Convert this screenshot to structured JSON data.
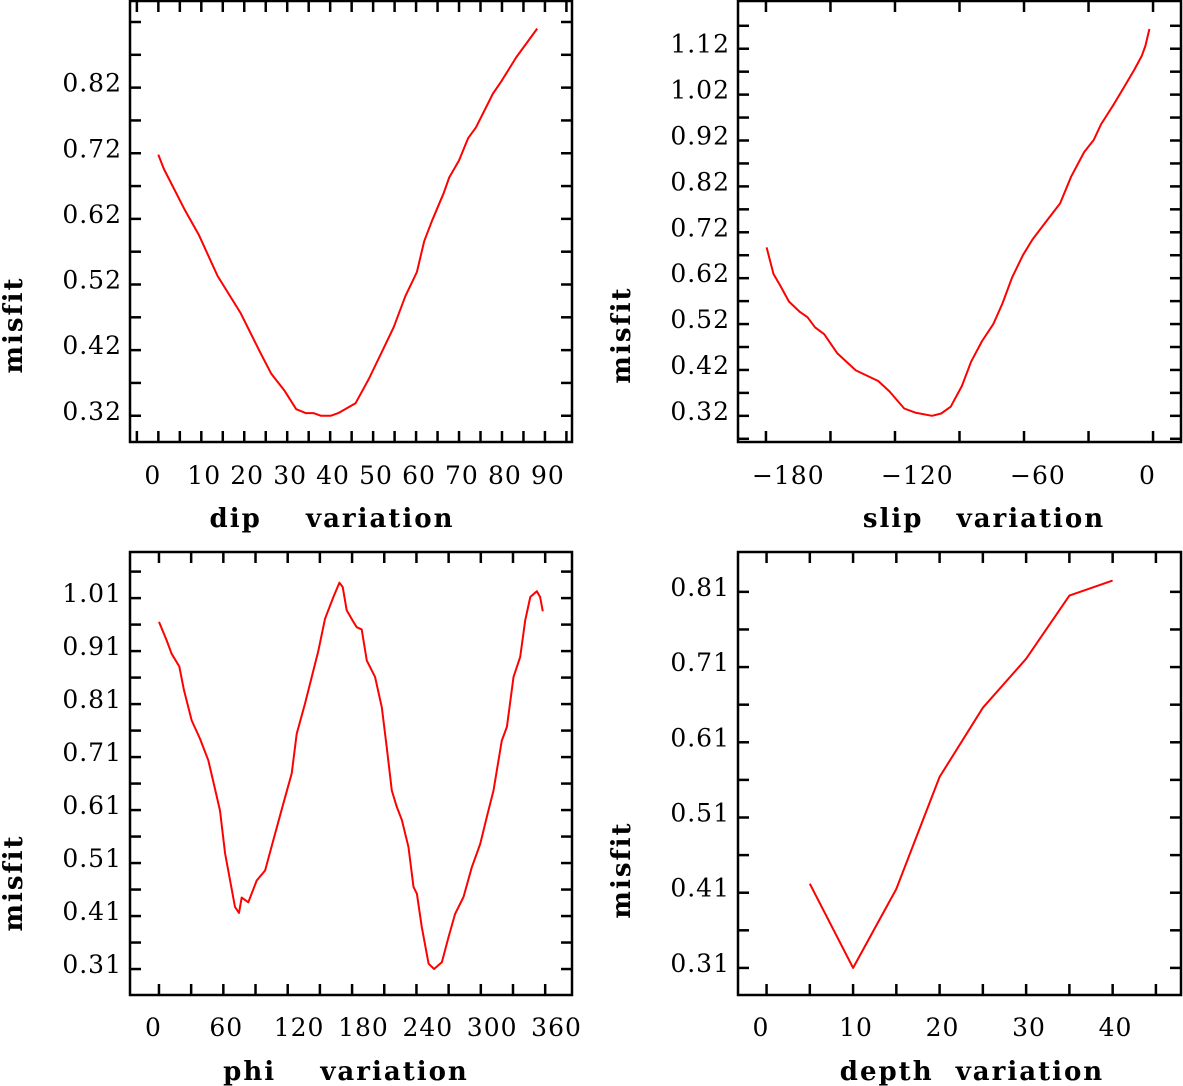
{
  "chart_data": [
    {
      "type": "line",
      "title": "",
      "xlabel": "dip    variation",
      "ylabel": "misfit",
      "xlim": [
        -6.6,
        96.3
      ],
      "ylim": [
        0.28,
        0.952
      ],
      "xticks": [
        0,
        10,
        20,
        30,
        40,
        50,
        60,
        70,
        80,
        90
      ],
      "xtick_labels": [
        "0",
        "10",
        "20",
        "30",
        "40",
        "50",
        "60",
        "70",
        "80",
        "90"
      ],
      "xminor_step": 5,
      "yticks": [
        0.32,
        0.42,
        0.52,
        0.62,
        0.72,
        0.82
      ],
      "ytick_labels": [
        "0.32",
        "0.42",
        "0.52",
        "0.62",
        "0.72",
        "0.82"
      ],
      "yminor_step": 0.05,
      "color": "#ff0000",
      "x": [
        0,
        1.3,
        6.2,
        9.4,
        13.8,
        19.2,
        23.6,
        26.3,
        29.4,
        32.1,
        34.3,
        36.1,
        37.9,
        40.1,
        41.9,
        45.9,
        49,
        52.1,
        54.8,
        57.5,
        60.2,
        61.9,
        63.7,
        66.4,
        67.7,
        70,
        72.1,
        73.9,
        77.9,
        79.8,
        83.3,
        88.2
      ],
      "y": [
        0.718,
        0.696,
        0.633,
        0.596,
        0.533,
        0.476,
        0.418,
        0.384,
        0.358,
        0.33,
        0.324,
        0.324,
        0.32,
        0.32,
        0.324,
        0.339,
        0.376,
        0.418,
        0.455,
        0.502,
        0.539,
        0.586,
        0.617,
        0.659,
        0.683,
        0.709,
        0.743,
        0.759,
        0.811,
        0.829,
        0.866,
        0.91
      ]
    },
    {
      "type": "line",
      "title": "",
      "xlabel": "slip   variation",
      "ylabel": "misfit",
      "xlim": [
        -193,
        13
      ],
      "ylim": [
        0.263,
        1.224
      ],
      "xticks": [
        -180,
        -120,
        -60,
        0
      ],
      "xtick_labels": [
        "−180",
        "−120",
        "−60",
        "0"
      ],
      "xminor_step": 30,
      "yticks": [
        0.32,
        0.42,
        0.52,
        0.62,
        0.72,
        0.82,
        0.92,
        1.02,
        1.12
      ],
      "ytick_labels": [
        "0.32",
        "0.42",
        "0.52",
        "0.62",
        "0.72",
        "0.82",
        "0.92",
        "1.02",
        "1.12"
      ],
      "yminor_step": 0.05,
      "color": "#ff0000",
      "x": [
        -179.7,
        -176.5,
        -173.6,
        -169.3,
        -164.1,
        -160.7,
        -157.2,
        -152.9,
        -146.8,
        -138.2,
        -127.8,
        -122.7,
        -115.7,
        -110.6,
        -102.8,
        -98.5,
        -94.1,
        -88.9,
        -84.6,
        -79.5,
        -74.3,
        -70,
        -65.6,
        -60.5,
        -56.1,
        -50.1,
        -43.2,
        -38,
        -32,
        -27.6,
        -24.2,
        -18.1,
        -13.8,
        -8.6,
        -5.2,
        -3.5,
        -1.7
      ],
      "y": [
        0.687,
        0.629,
        0.606,
        0.569,
        0.546,
        0.535,
        0.513,
        0.498,
        0.456,
        0.419,
        0.396,
        0.374,
        0.336,
        0.327,
        0.32,
        0.325,
        0.34,
        0.385,
        0.438,
        0.483,
        0.52,
        0.565,
        0.621,
        0.67,
        0.704,
        0.741,
        0.783,
        0.842,
        0.895,
        0.921,
        0.955,
        1.0,
        1.034,
        1.075,
        1.105,
        1.127,
        1.163
      ]
    },
    {
      "type": "line",
      "title": "",
      "xlabel": "phi    variation",
      "ylabel": "misfit",
      "xlim": [
        -27,
        385
      ],
      "ylim": [
        0.261,
        1.097
      ],
      "xticks": [
        0,
        60,
        120,
        180,
        240,
        300,
        360
      ],
      "xtick_labels": [
        "0",
        "60",
        "120",
        "180",
        "240",
        "300",
        "360"
      ],
      "xminor_step": 30,
      "yticks": [
        0.31,
        0.41,
        0.51,
        0.61,
        0.71,
        0.81,
        0.91,
        1.01
      ],
      "ytick_labels": [
        "0.31",
        "0.41",
        "0.51",
        "0.61",
        "0.71",
        "0.81",
        "0.91",
        "1.01"
      ],
      "yminor_step": 0.05,
      "color": "#ff0000",
      "x": [
        0,
        7.2,
        11.8,
        19,
        23.3,
        30.5,
        38.2,
        46,
        52.2,
        56.9,
        61.6,
        66.3,
        70.9,
        74.6,
        77.1,
        83.3,
        91.1,
        98.9,
        106.6,
        115.9,
        123.7,
        128.4,
        136.1,
        142.4,
        148.6,
        154.8,
        162.6,
        168.2,
        171.3,
        175,
        181.2,
        184.3,
        189,
        193.7,
        201.5,
        207.7,
        212.3,
        217,
        221.7,
        226.4,
        232.6,
        237.3,
        240.4,
        245,
        251.3,
        256.5,
        263.7,
        269.9,
        276,
        283.9,
        291.6,
        299.4,
        305.6,
        311.8,
        319.6,
        324.3,
        330.5,
        336.7,
        341.4,
        346.1,
        352.2,
        355.3,
        357.8
      ],
      "y": [
        0.965,
        0.93,
        0.905,
        0.881,
        0.836,
        0.779,
        0.745,
        0.704,
        0.65,
        0.609,
        0.528,
        0.477,
        0.427,
        0.416,
        0.445,
        0.436,
        0.477,
        0.496,
        0.553,
        0.622,
        0.679,
        0.754,
        0.811,
        0.861,
        0.911,
        0.971,
        1.012,
        1.039,
        1.031,
        0.987,
        0.965,
        0.955,
        0.951,
        0.892,
        0.861,
        0.804,
        0.729,
        0.647,
        0.616,
        0.591,
        0.54,
        0.465,
        0.452,
        0.389,
        0.32,
        0.31,
        0.323,
        0.37,
        0.414,
        0.446,
        0.502,
        0.546,
        0.597,
        0.647,
        0.741,
        0.767,
        0.861,
        0.899,
        0.968,
        1.012,
        1.023,
        1.012,
        0.985
      ]
    },
    {
      "type": "line",
      "title": "",
      "xlabel": "depth  variation",
      "ylabel": "misfit",
      "xlim": [
        -3.3,
        47.9
      ],
      "ylim": [
        0.274,
        0.863
      ],
      "xticks": [
        0,
        10,
        20,
        30,
        40
      ],
      "xtick_labels": [
        "0",
        "10",
        "20",
        "30",
        "40"
      ],
      "xminor_step": 5,
      "yticks": [
        0.31,
        0.41,
        0.51,
        0.61,
        0.71,
        0.81
      ],
      "ytick_labels": [
        "0.31",
        "0.41",
        "0.51",
        "0.61",
        "0.71",
        "0.81"
      ],
      "yminor_step": 0.05,
      "color": "#ff0000",
      "x": [
        5,
        10,
        15,
        20,
        25,
        30,
        35,
        40
      ],
      "y": [
        0.422,
        0.31,
        0.415,
        0.564,
        0.656,
        0.721,
        0.805,
        0.825
      ]
    }
  ]
}
